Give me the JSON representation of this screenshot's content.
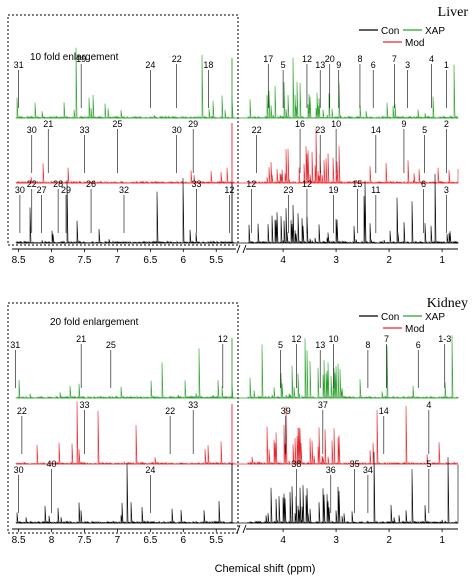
{
  "chart_data": [
    {
      "type": "line",
      "title": "Liver",
      "inset_label": "10 fold enlargement",
      "xlabel": "",
      "left_axis": {
        "range": [
          8.6,
          5.2
        ],
        "ticks": [
          "8.5",
          "8",
          "7.5",
          "7",
          "6.5",
          "6",
          "5.5"
        ]
      },
      "right_axis": {
        "range": [
          4.7,
          0.7
        ],
        "ticks": [
          "4",
          "3",
          "2",
          "1"
        ]
      },
      "legend": [
        {
          "name": "Con",
          "color": "#000000"
        },
        {
          "name": "XAP",
          "color": "#2ca02c"
        },
        {
          "name": "Mod",
          "color": "#e8262e"
        }
      ],
      "series": [
        {
          "name": "XAP",
          "color": "#2ca02c",
          "row": "top"
        },
        {
          "name": "Mod",
          "color": "#e8262e",
          "row": "middle"
        },
        {
          "name": "Con",
          "color": "#000000",
          "row": "bottom"
        }
      ],
      "peak_labels": {
        "top": [
          {
            "label": "31",
            "x": 8.5
          },
          {
            "label": "19",
            "x": 7.55
          },
          {
            "label": "24",
            "x": 6.5
          },
          {
            "label": "22",
            "x": 6.1
          },
          {
            "label": "18",
            "x": 5.62
          },
          {
            "label": "17",
            "x": 4.28
          },
          {
            "label": "5",
            "x": 4.0
          },
          {
            "label": "12",
            "x": 3.55
          },
          {
            "label": "13",
            "x": 3.3
          },
          {
            "label": "20",
            "x": 3.12
          },
          {
            "label": "9",
            "x": 2.95
          },
          {
            "label": "8",
            "x": 2.55
          },
          {
            "label": "6",
            "x": 2.3
          },
          {
            "label": "7",
            "x": 1.9
          },
          {
            "label": "3",
            "x": 1.65
          },
          {
            "label": "4",
            "x": 1.2
          },
          {
            "label": "1",
            "x": 0.92
          }
        ],
        "middle": [
          {
            "label": "30",
            "x": 8.3
          },
          {
            "label": "21",
            "x": 8.05
          },
          {
            "label": "33",
            "x": 7.5
          },
          {
            "label": "25",
            "x": 7.0
          },
          {
            "label": "30",
            "x": 6.1
          },
          {
            "label": "29",
            "x": 5.85
          },
          {
            "label": "22",
            "x": 4.5
          },
          {
            "label": "16",
            "x": 3.68
          },
          {
            "label": "23",
            "x": 3.3
          },
          {
            "label": "10",
            "x": 3.0
          },
          {
            "label": "14",
            "x": 2.25
          },
          {
            "label": "9",
            "x": 1.72
          },
          {
            "label": "5",
            "x": 1.33
          },
          {
            "label": "2",
            "x": 0.92
          }
        ],
        "bottom": [
          {
            "label": "30",
            "x": 8.48
          },
          {
            "label": "22",
            "x": 8.3
          },
          {
            "label": "27",
            "x": 8.15
          },
          {
            "label": "28",
            "x": 7.9
          },
          {
            "label": "29",
            "x": 7.78
          },
          {
            "label": "26",
            "x": 7.4
          },
          {
            "label": "32",
            "x": 6.9
          },
          {
            "label": "33",
            "x": 5.8
          },
          {
            "label": "12",
            "x": 5.3
          },
          {
            "label": "12",
            "x": 4.6
          },
          {
            "label": "23",
            "x": 3.9
          },
          {
            "label": "12",
            "x": 3.55
          },
          {
            "label": "19",
            "x": 3.05
          },
          {
            "label": "15",
            "x": 2.6
          },
          {
            "label": "11",
            "x": 2.25
          },
          {
            "label": "6",
            "x": 1.35
          },
          {
            "label": "3",
            "x": 0.92
          }
        ]
      }
    },
    {
      "type": "line",
      "title": "Kidney",
      "inset_label": "20 fold enlargement",
      "xlabel": "Chemical shift (ppm)",
      "left_axis": {
        "range": [
          8.6,
          5.2
        ],
        "ticks": [
          "8.5",
          "8",
          "7.5",
          "7",
          "6.5",
          "6",
          "5.5"
        ]
      },
      "right_axis": {
        "range": [
          4.7,
          0.7
        ],
        "ticks": [
          "4",
          "3",
          "2",
          "1"
        ]
      },
      "legend": [
        {
          "name": "Con",
          "color": "#000000"
        },
        {
          "name": "XAP",
          "color": "#2ca02c"
        },
        {
          "name": "Mod",
          "color": "#e8262e"
        }
      ],
      "series": [
        {
          "name": "XAP",
          "color": "#2ca02c",
          "row": "top"
        },
        {
          "name": "Mod",
          "color": "#e8262e",
          "row": "middle"
        },
        {
          "name": "Con",
          "color": "#000000",
          "row": "bottom"
        }
      ],
      "peak_labels": {
        "top": [
          {
            "label": "31",
            "x": 8.55
          },
          {
            "label": "21",
            "x": 7.55
          },
          {
            "label": "25",
            "x": 7.1
          },
          {
            "label": "12",
            "x": 5.4
          },
          {
            "label": "5",
            "x": 4.05
          },
          {
            "label": "12",
            "x": 3.75
          },
          {
            "label": "13",
            "x": 3.3
          },
          {
            "label": "10",
            "x": 3.05
          },
          {
            "label": "8",
            "x": 2.4
          },
          {
            "label": "7",
            "x": 2.05
          },
          {
            "label": "6",
            "x": 1.45
          },
          {
            "label": "1-3",
            "x": 0.95
          }
        ],
        "middle": [
          {
            "label": "22",
            "x": 8.45
          },
          {
            "label": "33",
            "x": 7.5
          },
          {
            "label": "22",
            "x": 6.2
          },
          {
            "label": "33",
            "x": 5.85
          },
          {
            "label": "39",
            "x": 3.95
          },
          {
            "label": "37",
            "x": 3.25
          },
          {
            "label": "14",
            "x": 2.1
          },
          {
            "label": "4",
            "x": 1.25
          }
        ],
        "bottom": [
          {
            "label": "30",
            "x": 8.5
          },
          {
            "label": "40",
            "x": 8.0
          },
          {
            "label": "24",
            "x": 6.5
          },
          {
            "label": "38",
            "x": 3.75
          },
          {
            "label": "36",
            "x": 3.1
          },
          {
            "label": "35",
            "x": 2.65
          },
          {
            "label": "34",
            "x": 2.4
          },
          {
            "label": "5",
            "x": 1.25
          }
        ]
      }
    }
  ]
}
